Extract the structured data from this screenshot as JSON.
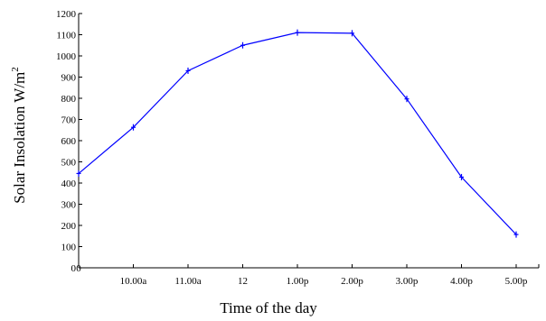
{
  "chart_data": {
    "type": "line",
    "title": "",
    "xlabel": "Time of the day",
    "ylabel": "Solar Insolation W/m",
    "ylabel_superscript": "2",
    "ylim": [
      0,
      1200
    ],
    "yticks": [
      0,
      100,
      200,
      300,
      400,
      500,
      600,
      700,
      800,
      900,
      1000,
      1100,
      1200
    ],
    "categories": [
      "0",
      "10.00a",
      "11.00a",
      "12",
      "1.00p",
      "2.00p",
      "3.00p",
      "4.00p",
      "5.00p"
    ],
    "series": [
      {
        "name": "",
        "color": "#0000ff",
        "values": [
          445,
          663,
          930,
          1050,
          1110,
          1107,
          797,
          428,
          157
        ]
      }
    ],
    "grid": false,
    "legend": "none"
  }
}
